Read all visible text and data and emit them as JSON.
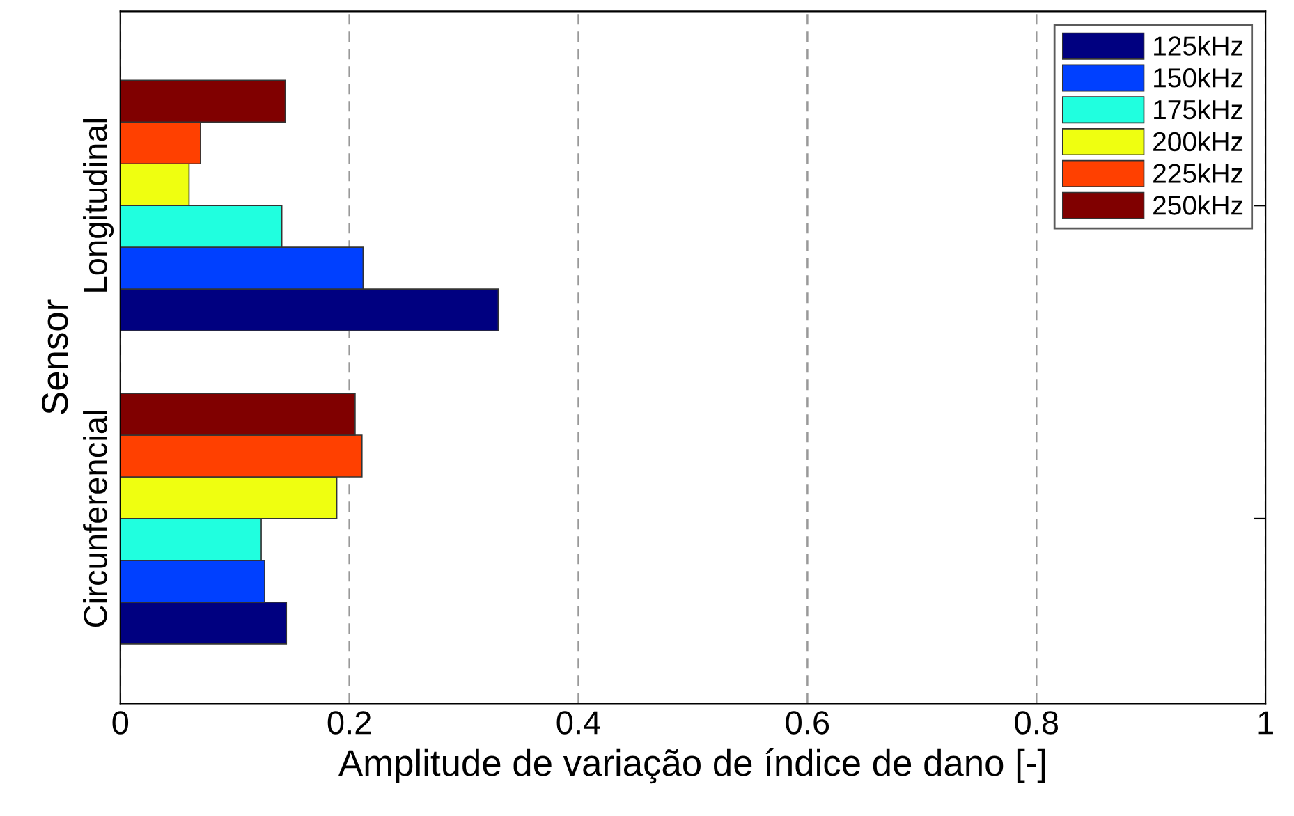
{
  "chart_data": {
    "type": "bar",
    "orientation": "horizontal",
    "categories": [
      "Longitudinal",
      "Circunferencial"
    ],
    "series": [
      {
        "name": "125kHz",
        "color": "#000080",
        "values": [
          0.33,
          0.145
        ]
      },
      {
        "name": "150kHz",
        "color": "#0040ff",
        "values": [
          0.212,
          0.126
        ]
      },
      {
        "name": "175kHz",
        "color": "#20ffdf",
        "values": [
          0.141,
          0.123
        ]
      },
      {
        "name": "200kHz",
        "color": "#efff10",
        "values": [
          0.06,
          0.189
        ]
      },
      {
        "name": "225kHz",
        "color": "#ff4000",
        "values": [
          0.07,
          0.211
        ]
      },
      {
        "name": "250kHz",
        "color": "#800000",
        "values": [
          0.144,
          0.205
        ]
      }
    ],
    "xlabel": "Amplitude de variação de índice de dano [-]",
    "ylabel": "Sensor",
    "xlim": [
      0,
      1
    ],
    "xticks": [
      0,
      0.2,
      0.4,
      0.6,
      0.8,
      1
    ],
    "grid": "x",
    "legend": "top right"
  }
}
